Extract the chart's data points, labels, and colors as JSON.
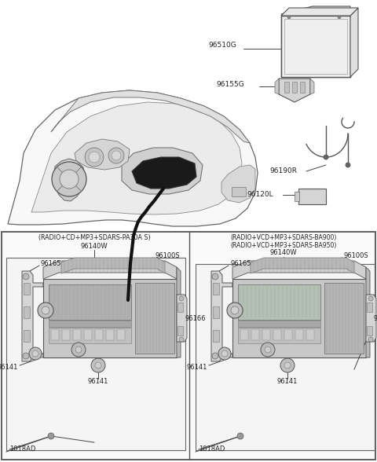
{
  "bg_color": "#ffffff",
  "fig_width": 4.8,
  "fig_height": 5.88,
  "dpi": 100,
  "box1_label": "(RADIO+CD+MP3+SDARS-PA30A S)",
  "box1_sub": "96140W",
  "box2_label1": "(RADIO+VCD+MP3+SDARS-BA900)",
  "box2_label2": "(RADIO+VCD+MP3+SDARS-BA950)",
  "box2_sub": "96140W",
  "label_96510G": "96510G",
  "label_96155G": "96155G",
  "label_96190R": "96190R",
  "label_96120L": "96120L",
  "label_96165": "96165",
  "label_96100S": "96100S",
  "label_96166": "96166",
  "label_96141": "96141",
  "label_1018AD": "1018AD",
  "line_color": "#444444",
  "edge_color": "#555555",
  "face_light": "#f0f0f0",
  "face_mid": "#d8d8d8",
  "face_dark": "#bbbbbb",
  "text_color": "#222222",
  "black": "#111111"
}
